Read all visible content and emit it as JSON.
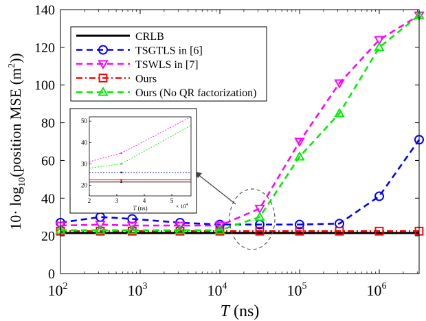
{
  "chart_data": {
    "type": "line",
    "ylabel_prefix": "10· log",
    "ylabel_sub": "10",
    "ylabel_mid": "(position MSE (m",
    "ylabel_sup": "2",
    "ylabel_end": "))",
    "xlabel_var": "T",
    "xlabel_unit": " (ns)",
    "xscale": "log",
    "xlim": [
      100,
      3162278
    ],
    "ylim": [
      0,
      140
    ],
    "x_ticks": [
      {
        "base": "10",
        "exp": "2",
        "value": 100
      },
      {
        "base": "10",
        "exp": "3",
        "value": 1000
      },
      {
        "base": "10",
        "exp": "4",
        "value": 10000
      },
      {
        "base": "10",
        "exp": "5",
        "value": 100000
      },
      {
        "base": "10",
        "exp": "6",
        "value": 1000000
      }
    ],
    "y_ticks": [
      "0",
      "20",
      "40",
      "60",
      "80",
      "100",
      "120",
      "140"
    ],
    "x": [
      100,
      316,
      794,
      3162,
      10000,
      31623,
      100000,
      316228,
      1000000,
      3162278
    ],
    "legend_position": "upper-left",
    "series": [
      {
        "name": "CRLB",
        "color": "#000000",
        "dash": "solid",
        "marker": "none",
        "values": [
          21.5,
          21.5,
          21.5,
          21.5,
          21.5,
          21.5,
          21.5,
          21.5,
          21.5,
          21.5
        ]
      },
      {
        "name": "TSGTLS in [6]",
        "color": "#0000ff",
        "dash": "dashed",
        "marker": "circle",
        "values": [
          27,
          30,
          29,
          27,
          26,
          26,
          26,
          26.5,
          41,
          71
        ]
      },
      {
        "name": "TSWLS in [7]",
        "color": "#ff00ff",
        "dash": "dashed",
        "marker": "triangle-down",
        "values": [
          25.5,
          26,
          25.5,
          25.5,
          25.5,
          34.5,
          70,
          101,
          124,
          137
        ]
      },
      {
        "name": "Ours",
        "color": "#ff0000",
        "dash": "dashdot",
        "marker": "square",
        "values": [
          22.5,
          22.5,
          22.5,
          22.5,
          22.5,
          22.5,
          22.5,
          22.5,
          22.5,
          22.5
        ]
      },
      {
        "name": "Ours (No QR factorization)",
        "color": "#00ee00",
        "dash": "dashed",
        "marker": "triangle-up",
        "values": [
          23,
          23,
          23,
          23,
          23,
          30,
          62,
          85,
          120,
          137
        ]
      }
    ],
    "inset": {
      "x_ticks": [
        "2",
        "3",
        "4",
        "5"
      ],
      "x_tick_values": [
        20000,
        30000,
        40000,
        50000
      ],
      "xlim": [
        20000,
        57000
      ],
      "y_ticks": [
        "20",
        "30",
        "40",
        "50"
      ],
      "ylim": [
        15,
        52
      ],
      "xlabel_var": "T",
      "xlabel_unit": " (ns)",
      "x_multiplier_base": "× 10",
      "x_multiplier_exp": "4",
      "series": [
        {
          "name": "TSWLS in [7]",
          "color": "#ff00ff",
          "x": [
            20000,
            31623,
            57000
          ],
          "values": [
            31,
            35,
            54
          ]
        },
        {
          "name": "Ours (No QR factorization)",
          "color": "#00ee00",
          "x": [
            20000,
            31623,
            57000
          ],
          "values": [
            28,
            30,
            48
          ]
        },
        {
          "name": "TSGTLS in [6]",
          "color": "#0000ff",
          "x": [
            20000,
            31623,
            57000
          ],
          "values": [
            26,
            26,
            26
          ]
        },
        {
          "name": "Ours",
          "color": "#ff0000",
          "x": [
            20000,
            31623,
            57000
          ],
          "values": [
            22.5,
            22.5,
            22.5
          ]
        },
        {
          "name": "CRLB",
          "color": "#000000",
          "x": [
            20000,
            31623,
            57000
          ],
          "values": [
            21.5,
            21.5,
            21.5
          ]
        }
      ]
    }
  }
}
